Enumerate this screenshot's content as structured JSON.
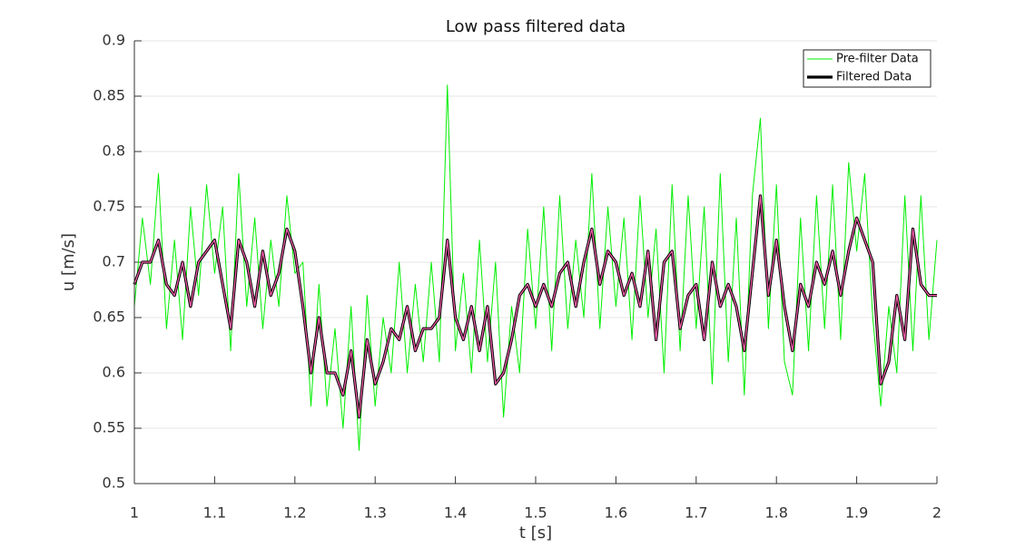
{
  "chart_data": {
    "type": "line",
    "title": "Low pass filtered data",
    "xlabel": "t [s]",
    "ylabel": "u [m/s]",
    "x": [
      1,
      1.01,
      1.02,
      1.03,
      1.04,
      1.05,
      1.06,
      1.07,
      1.08,
      1.09,
      1.1,
      1.11,
      1.12,
      1.13,
      1.14,
      1.15,
      1.16,
      1.17,
      1.18,
      1.19,
      1.2,
      1.21,
      1.22,
      1.23,
      1.24,
      1.25,
      1.26,
      1.27,
      1.28,
      1.29,
      1.3,
      1.31,
      1.32,
      1.33,
      1.34,
      1.35,
      1.36,
      1.37,
      1.38,
      1.39,
      1.4,
      1.41,
      1.42,
      1.43,
      1.44,
      1.45,
      1.46,
      1.47,
      1.48,
      1.49,
      1.5,
      1.51,
      1.52,
      1.53,
      1.54,
      1.55,
      1.56,
      1.57,
      1.58,
      1.59,
      1.6,
      1.61,
      1.62,
      1.63,
      1.64,
      1.65,
      1.66,
      1.67,
      1.68,
      1.69,
      1.7,
      1.71,
      1.72,
      1.73,
      1.74,
      1.75,
      1.76,
      1.77,
      1.78,
      1.79,
      1.8,
      1.81,
      1.82,
      1.83,
      1.84,
      1.85,
      1.86,
      1.87,
      1.88,
      1.89,
      1.9,
      1.91,
      1.92,
      1.93,
      1.94,
      1.95,
      1.96,
      1.97,
      1.98,
      1.99,
      2
    ],
    "series": [
      {
        "name": "Pre-filter Data",
        "color": "#00ee00",
        "values": [
          0.66,
          0.74,
          0.68,
          0.78,
          0.64,
          0.72,
          0.63,
          0.75,
          0.67,
          0.77,
          0.69,
          0.75,
          0.62,
          0.78,
          0.66,
          0.74,
          0.64,
          0.72,
          0.66,
          0.76,
          0.69,
          0.7,
          0.57,
          0.68,
          0.57,
          0.64,
          0.55,
          0.66,
          0.53,
          0.67,
          0.57,
          0.65,
          0.6,
          0.7,
          0.6,
          0.68,
          0.61,
          0.7,
          0.61,
          0.86,
          0.62,
          0.69,
          0.6,
          0.72,
          0.61,
          0.7,
          0.56,
          0.66,
          0.6,
          0.73,
          0.64,
          0.75,
          0.62,
          0.76,
          0.64,
          0.72,
          0.65,
          0.78,
          0.64,
          0.75,
          0.66,
          0.74,
          0.63,
          0.76,
          0.65,
          0.73,
          0.6,
          0.77,
          0.62,
          0.76,
          0.64,
          0.75,
          0.59,
          0.78,
          0.61,
          0.74,
          0.58,
          0.76,
          0.83,
          0.64,
          0.77,
          0.61,
          0.58,
          0.74,
          0.62,
          0.76,
          0.64,
          0.77,
          0.63,
          0.79,
          0.71,
          0.78,
          0.65,
          0.57,
          0.66,
          0.6,
          0.76,
          0.62,
          0.76,
          0.63,
          0.72
        ]
      },
      {
        "name": "Filtered Data",
        "color": "#000000",
        "highlight_color": "#ff5fb0",
        "values": [
          0.68,
          0.7,
          0.7,
          0.72,
          0.68,
          0.67,
          0.7,
          0.66,
          0.7,
          0.71,
          0.72,
          0.68,
          0.64,
          0.72,
          0.7,
          0.66,
          0.71,
          0.67,
          0.69,
          0.73,
          0.71,
          0.66,
          0.6,
          0.65,
          0.6,
          0.6,
          0.58,
          0.62,
          0.56,
          0.63,
          0.59,
          0.61,
          0.64,
          0.63,
          0.66,
          0.62,
          0.64,
          0.64,
          0.65,
          0.72,
          0.65,
          0.63,
          0.66,
          0.62,
          0.66,
          0.59,
          0.6,
          0.63,
          0.67,
          0.68,
          0.66,
          0.68,
          0.66,
          0.69,
          0.7,
          0.66,
          0.7,
          0.73,
          0.68,
          0.71,
          0.7,
          0.67,
          0.69,
          0.66,
          0.71,
          0.63,
          0.7,
          0.71,
          0.64,
          0.67,
          0.68,
          0.63,
          0.7,
          0.66,
          0.68,
          0.66,
          0.62,
          0.69,
          0.76,
          0.67,
          0.72,
          0.66,
          0.62,
          0.68,
          0.66,
          0.7,
          0.68,
          0.71,
          0.67,
          0.71,
          0.74,
          0.72,
          0.7,
          0.59,
          0.61,
          0.67,
          0.63,
          0.73,
          0.68,
          0.67,
          0.67
        ]
      }
    ],
    "xlim": [
      1,
      2
    ],
    "ylim": [
      0.5,
      0.9
    ],
    "xticks": [
      1,
      1.1,
      1.2,
      1.3,
      1.4,
      1.5,
      1.6,
      1.7,
      1.8,
      1.9,
      2
    ],
    "yticks": [
      0.5,
      0.55,
      0.6,
      0.65,
      0.7,
      0.75,
      0.8,
      0.85,
      0.9
    ],
    "grid": "y",
    "legend": "northeast"
  }
}
